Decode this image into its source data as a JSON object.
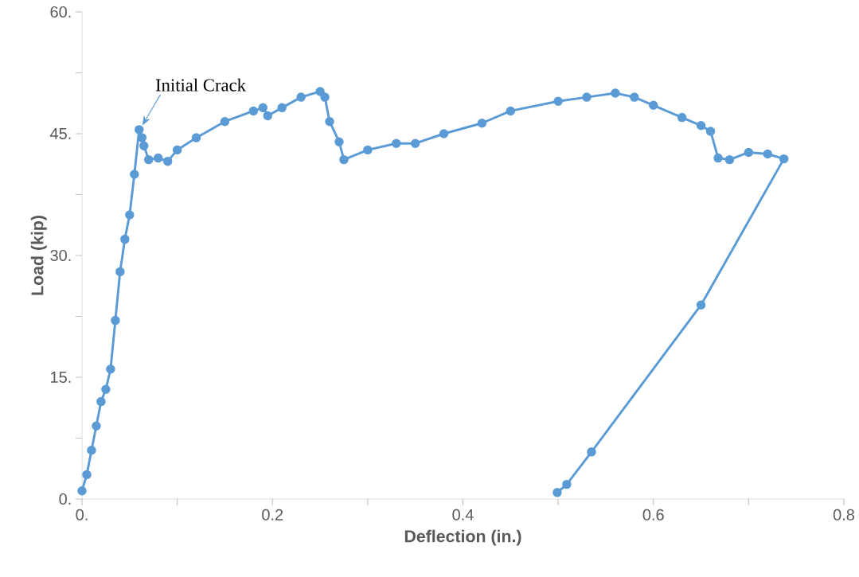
{
  "chart_data": {
    "type": "line",
    "xlabel": "Deflection (in.)",
    "ylabel": "Load (kip)",
    "x": [
      0.0,
      0.005,
      0.01,
      0.015,
      0.02,
      0.025,
      0.03,
      0.035,
      0.04,
      0.045,
      0.05,
      0.055,
      0.06,
      0.063,
      0.065,
      0.07,
      0.08,
      0.09,
      0.1,
      0.12,
      0.15,
      0.18,
      0.19,
      0.195,
      0.21,
      0.23,
      0.25,
      0.255,
      0.26,
      0.27,
      0.275,
      0.3,
      0.33,
      0.35,
      0.38,
      0.42,
      0.45,
      0.5,
      0.53,
      0.56,
      0.58,
      0.6,
      0.63,
      0.65,
      0.66,
      0.668,
      0.68,
      0.7,
      0.72,
      0.737,
      0.65,
      0.535,
      0.509,
      0.499
    ],
    "series": [
      {
        "color": "#5b9bd5",
        "values": [
          1.0,
          3,
          6,
          9,
          12,
          13.5,
          16,
          22,
          28,
          32,
          35,
          40,
          45.5,
          44.5,
          43.5,
          41.8,
          42,
          41.6,
          43,
          44.5,
          46.5,
          47.8,
          48.2,
          47.2,
          48.2,
          49.5,
          50.2,
          49.5,
          46.5,
          44,
          41.8,
          43,
          43.8,
          43.8,
          45,
          46.3,
          47.8,
          49,
          49.5,
          50,
          49.5,
          48.5,
          47,
          46,
          45.3,
          42,
          41.8,
          42.7,
          42.5,
          41.9,
          23.9,
          5.8,
          1.8,
          0.8
        ]
      }
    ],
    "xlim": [
      0,
      0.8
    ],
    "ylim": [
      0,
      60
    ],
    "xticks": [
      {
        "value": 0,
        "label": "0."
      },
      {
        "value": 0.1,
        "label": null
      },
      {
        "value": 0.2,
        "label": "0.2"
      },
      {
        "value": 0.3,
        "label": null
      },
      {
        "value": 0.4,
        "label": "0.4"
      },
      {
        "value": 0.5,
        "label": null
      },
      {
        "value": 0.6,
        "label": "0.6"
      },
      {
        "value": 0.7,
        "label": null
      },
      {
        "value": 0.8,
        "label": "0.8"
      }
    ],
    "yticks": [
      {
        "value": 0,
        "label": "0."
      },
      {
        "value": 7.5,
        "label": null
      },
      {
        "value": 15,
        "label": "15."
      },
      {
        "value": 22.5,
        "label": null
      },
      {
        "value": 30,
        "label": "30."
      },
      {
        "value": 37.5,
        "label": null
      },
      {
        "value": 45,
        "label": "45."
      },
      {
        "value": 52.5,
        "label": null
      },
      {
        "value": 60,
        "label": "60."
      }
    ],
    "annotations": [
      {
        "text": "Initial Crack",
        "x": 0.06,
        "y": 45.5
      }
    ],
    "grid": false,
    "marker": "circle",
    "line_style": "solid"
  }
}
